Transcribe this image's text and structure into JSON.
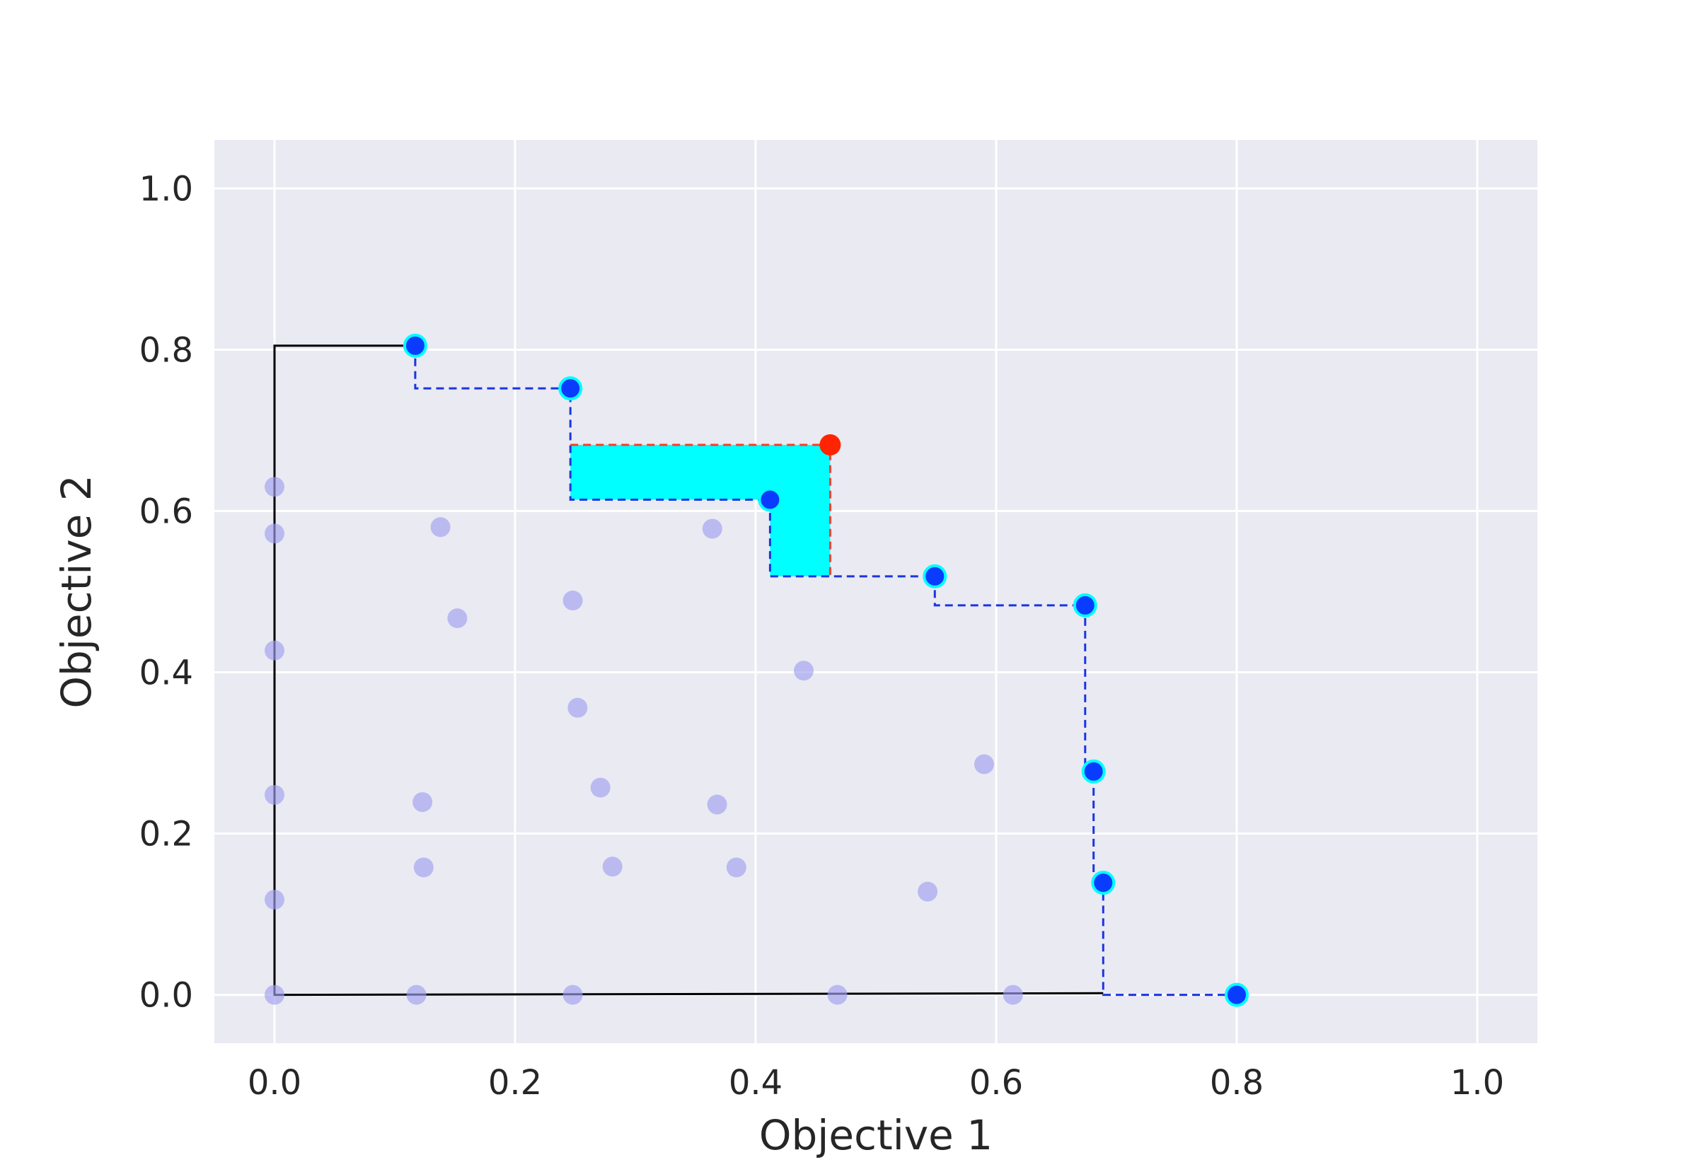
{
  "chart_data": {
    "type": "scatter",
    "xlabel": "Objective 1",
    "ylabel": "Objective 2",
    "xlim": [
      -0.05,
      1.05
    ],
    "ylim": [
      -0.06,
      1.06
    ],
    "xticks": [
      "0.0",
      "0.2",
      "0.4",
      "0.6",
      "0.8",
      "1.0"
    ],
    "yticks": [
      "0.0",
      "0.2",
      "0.4",
      "0.6",
      "0.8",
      "1.0"
    ],
    "grid": true,
    "background_color": "#eaeaf2",
    "dominated_points": {
      "color": "#9f9ff0",
      "points": [
        [
          0.0,
          0.63
        ],
        [
          0.0,
          0.572
        ],
        [
          0.0,
          0.427
        ],
        [
          0.0,
          0.248
        ],
        [
          0.0,
          0.118
        ],
        [
          0.0,
          0.0
        ],
        [
          0.138,
          0.58
        ],
        [
          0.152,
          0.467
        ],
        [
          0.123,
          0.239
        ],
        [
          0.124,
          0.158
        ],
        [
          0.118,
          0.0
        ],
        [
          0.248,
          0.489
        ],
        [
          0.252,
          0.356
        ],
        [
          0.271,
          0.257
        ],
        [
          0.281,
          0.159
        ],
        [
          0.248,
          0.0
        ],
        [
          0.364,
          0.578
        ],
        [
          0.368,
          0.236
        ],
        [
          0.384,
          0.158
        ],
        [
          0.44,
          0.402
        ],
        [
          0.468,
          0.0
        ],
        [
          0.543,
          0.128
        ],
        [
          0.59,
          0.286
        ],
        [
          0.614,
          0.0
        ]
      ]
    },
    "pareto_points": {
      "color": "#0a3cff",
      "edge_color": "#00ffff",
      "points": [
        [
          0.117,
          0.805
        ],
        [
          0.246,
          0.752
        ],
        [
          0.412,
          0.614
        ],
        [
          0.549,
          0.519
        ],
        [
          0.674,
          0.483
        ],
        [
          0.681,
          0.277
        ],
        [
          0.689,
          0.139
        ],
        [
          0.8,
          0.0
        ]
      ]
    },
    "new_point": {
      "color": "#ff2400",
      "x": 0.462,
      "y": 0.682
    },
    "pareto_front_style": {
      "color": "#1a35e0",
      "dashed": true
    },
    "reference_region": {
      "color": "#000000",
      "polyline": [
        [
          0.117,
          0.805
        ],
        [
          0.0,
          0.805
        ],
        [
          0.0,
          0.0
        ],
        [
          0.689,
          0.002
        ]
      ]
    },
    "improvement_region": {
      "color": "#00ffff",
      "outline_color": "#ff3b2a",
      "polygon": [
        [
          0.246,
          0.682
        ],
        [
          0.462,
          0.682
        ],
        [
          0.462,
          0.519
        ],
        [
          0.412,
          0.519
        ],
        [
          0.412,
          0.614
        ],
        [
          0.246,
          0.614
        ]
      ]
    }
  }
}
